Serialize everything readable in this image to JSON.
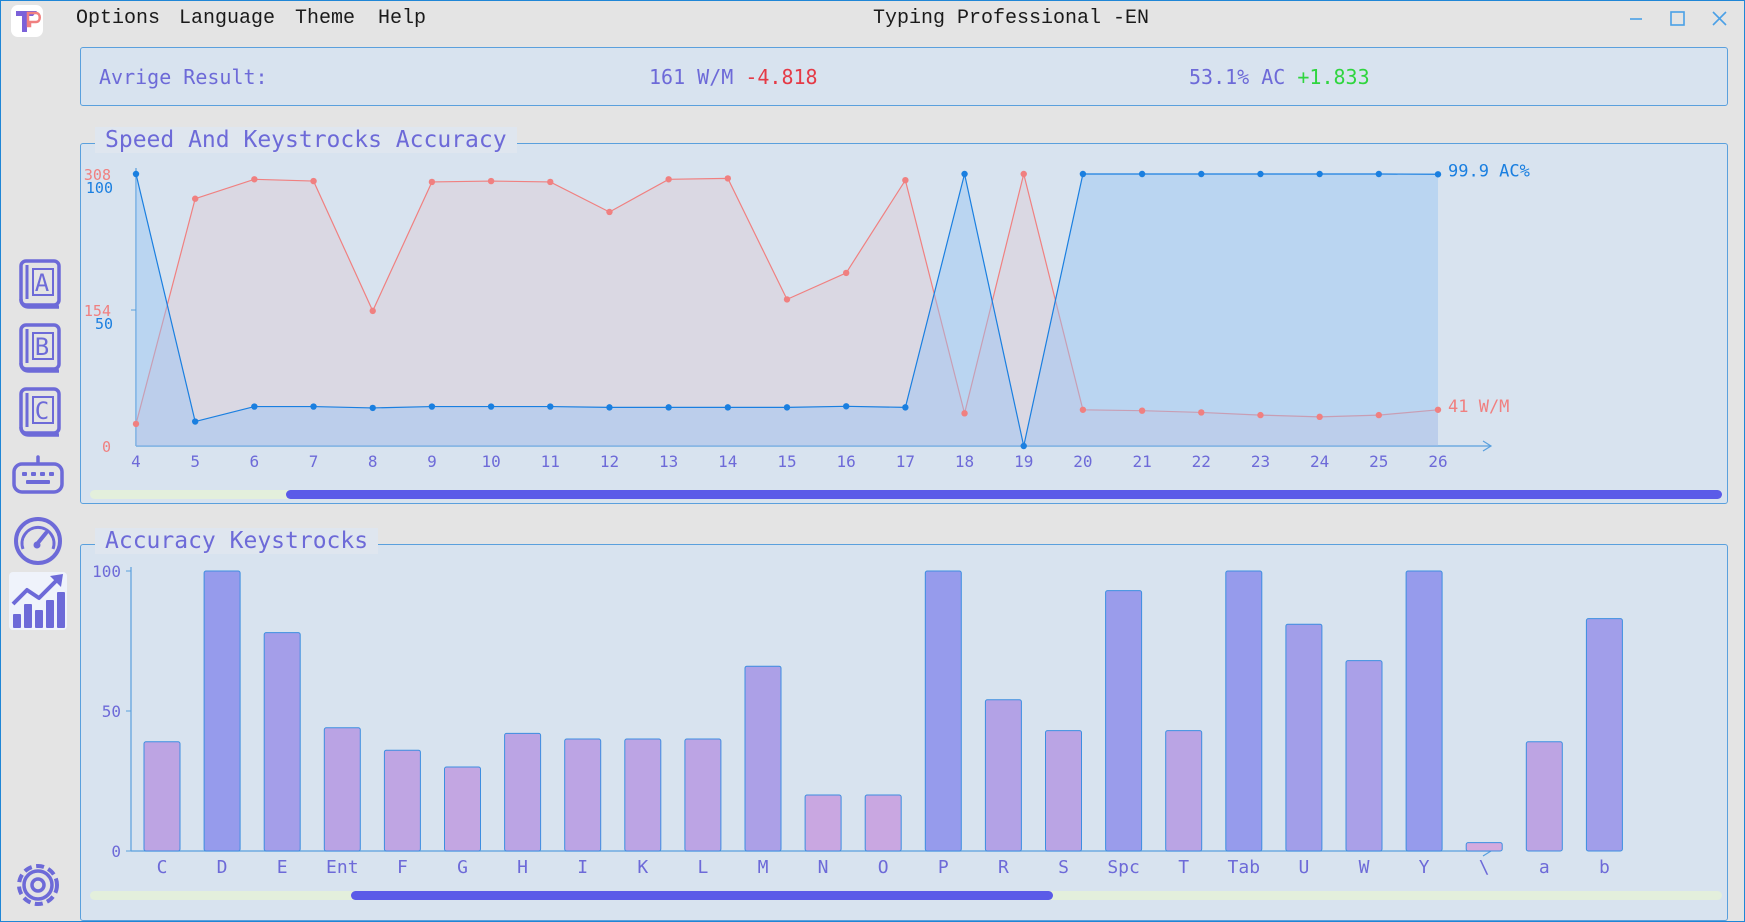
{
  "window": {
    "title": "Typing Professional -EN",
    "menu": [
      "Options",
      "Language",
      "Theme",
      "Help"
    ]
  },
  "icons": {
    "logo": "app-logo-icon",
    "minimize": "minimize-icon",
    "maximize": "maximize-icon",
    "close": "close-icon",
    "sidebar": [
      "book-a-icon",
      "book-b-icon",
      "book-c-icon",
      "keyboard-icon",
      "speedometer-icon",
      "statistics-chart-icon",
      "settings-gear-icon"
    ]
  },
  "sidebar": {
    "active_item": "statistics-chart-icon"
  },
  "result": {
    "label": "Avrige Result:",
    "speed": "161 W/M",
    "speed_delta": "-4.818",
    "accuracy": "53.1% AC",
    "accuracy_delta": "+1.833"
  },
  "colors": {
    "accent": "#6d6ad8",
    "speed_line": "#f08080",
    "accuracy_line": "#1a7fe0",
    "negative": "#e53a46",
    "positive": "#2fd53f",
    "scroll_thumb": "#5b5be8"
  },
  "speed_panel": {
    "title": "Speed And Keystrocks Accuracy",
    "last_accuracy_label": "99.9 AC%",
    "last_speed_label": "41 W/M",
    "scroll_position": 0.12,
    "scroll_visible_fraction": 0.88
  },
  "accuracy_panel": {
    "title": "Accuracy Keystrocks",
    "scroll_position": 0.16,
    "scroll_visible_fraction": 0.43
  },
  "chart_data": [
    {
      "type": "line",
      "title": "Speed And Keystrocks Accuracy",
      "x": [
        4,
        5,
        6,
        7,
        8,
        9,
        10,
        11,
        12,
        13,
        14,
        15,
        16,
        17,
        18,
        19,
        20,
        21,
        22,
        23,
        24,
        25,
        26
      ],
      "series": [
        {
          "axis": "left-outer",
          "ylim": [
            0,
            308
          ],
          "yticks": [
            "0",
            "154",
            "308"
          ],
          "values": [
            25,
            280,
            302,
            300,
            153,
            299,
            300,
            299,
            265,
            302,
            303,
            166,
            196,
            301,
            37,
            308,
            41,
            40,
            38,
            35,
            33,
            35,
            41
          ]
        },
        {
          "axis": "left-inner",
          "ylim": [
            0,
            100
          ],
          "yticks": [
            "50",
            "100"
          ],
          "values": [
            100,
            9,
            14.5,
            14.5,
            14,
            14.5,
            14.5,
            14.5,
            14.2,
            14.2,
            14.2,
            14.2,
            14.6,
            14.2,
            100,
            0,
            100,
            100,
            100,
            100,
            100,
            100,
            99.9
          ]
        }
      ],
      "xlabel": "",
      "ylabel": ""
    },
    {
      "type": "bar",
      "title": "Accuracy Keystrocks",
      "categories": [
        "C",
        "D",
        "E",
        "Ent",
        "F",
        "G",
        "H",
        "I",
        "K",
        "L",
        "M",
        "N",
        "O",
        "P",
        "R",
        "S",
        "Spc",
        "T",
        "Tab",
        "U",
        "W",
        "Y",
        "\\",
        "a",
        "b"
      ],
      "values": [
        39,
        100,
        78,
        44,
        36,
        30,
        42,
        40,
        40,
        40,
        66,
        20,
        20,
        100,
        54,
        43,
        93,
        43,
        100,
        81,
        68,
        100,
        3,
        39,
        83
      ],
      "ylim": [
        0,
        100
      ],
      "yticks": [
        "0",
        "50",
        "100"
      ],
      "xlabel": "",
      "ylabel": ""
    }
  ]
}
